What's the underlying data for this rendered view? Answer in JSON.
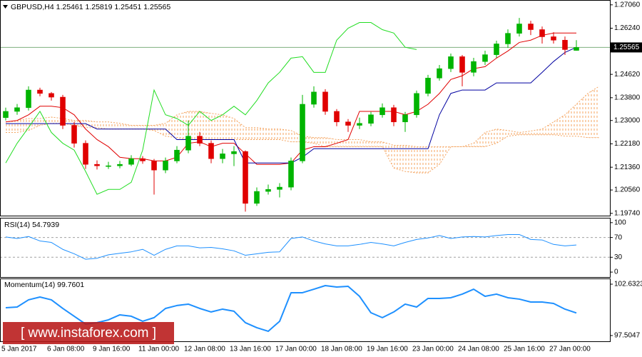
{
  "chart_data": [
    {
      "type": "candlestick",
      "title": "GBPUSD,H4  1.25461 1.25819 1.25451 1.25565",
      "categories": [
        "5 Jan 2017",
        null,
        null,
        null,
        "6 Jan 08:00",
        null,
        null,
        null,
        "9 Jan 16:00",
        null,
        null,
        null,
        "11 Jan 00:00",
        null,
        null,
        null,
        "12 Jan 08:00",
        null,
        null,
        null,
        "13 Jan 16:00",
        null,
        null,
        null,
        "17 Jan 00:00",
        null,
        null,
        null,
        "18 Jan 08:00",
        null,
        null,
        null,
        "19 Jan 16:00",
        null,
        null,
        null,
        "23 Jan 00:00",
        null,
        null,
        null,
        "24 Jan 08:00",
        null,
        null,
        null,
        "25 Jan 16:00",
        null,
        null,
        null,
        "27 Jan 00:00",
        null,
        null,
        null,
        null
      ],
      "ohlc": [
        [
          1.231,
          1.2345,
          1.23,
          1.2332
        ],
        [
          1.2332,
          1.2358,
          1.232,
          1.2345
        ],
        [
          1.2345,
          1.242,
          1.2335,
          1.2407
        ],
        [
          1.2407,
          1.2415,
          1.2385,
          1.2395
        ],
        [
          1.2395,
          1.24,
          1.237,
          1.2382
        ],
        [
          1.2382,
          1.239,
          1.227,
          1.2283
        ],
        [
          1.2283,
          1.2295,
          1.2205,
          1.222
        ],
        [
          1.222,
          1.223,
          1.213,
          1.2146
        ],
        [
          1.2146,
          1.216,
          1.2128,
          1.2141
        ],
        [
          1.2141,
          1.2155,
          1.213,
          1.2141
        ],
        [
          1.2141,
          1.2158,
          1.2132,
          1.2146
        ],
        [
          1.2146,
          1.2178,
          1.214,
          1.2166
        ],
        [
          1.2166,
          1.2175,
          1.2148,
          1.2158
        ],
        [
          1.2158,
          1.2165,
          1.204,
          1.2126
        ],
        [
          1.2126,
          1.217,
          1.2115,
          1.2158
        ],
        [
          1.2158,
          1.221,
          1.215,
          1.2196
        ],
        [
          1.2196,
          1.23,
          1.2185,
          1.2245
        ],
        [
          1.2245,
          1.226,
          1.221,
          1.222
        ],
        [
          1.222,
          1.223,
          1.215,
          1.2166
        ],
        [
          1.2166,
          1.22,
          1.215,
          1.2183
        ],
        [
          1.2183,
          1.221,
          1.214,
          1.2191
        ],
        [
          1.2191,
          1.2195,
          1.198,
          1.2009
        ],
        [
          1.2009,
          1.2065,
          1.2,
          1.2051
        ],
        [
          1.2051,
          1.2075,
          1.204,
          1.2058
        ],
        [
          1.2058,
          1.208,
          1.203,
          1.2066
        ],
        [
          1.2066,
          1.217,
          1.2055,
          1.2158
        ],
        [
          1.2158,
          1.239,
          1.215,
          1.2357
        ],
        [
          1.2357,
          1.242,
          1.2345,
          1.24
        ],
        [
          1.24,
          1.241,
          1.232,
          1.2332
        ],
        [
          1.2332,
          1.234,
          1.228,
          1.2295
        ],
        [
          1.2295,
          1.2305,
          1.226,
          1.2283
        ],
        [
          1.2283,
          1.231,
          1.227,
          1.229
        ],
        [
          1.229,
          1.233,
          1.228,
          1.232
        ],
        [
          1.232,
          1.236,
          1.231,
          1.2345
        ],
        [
          1.2345,
          1.2355,
          1.228,
          1.2295
        ],
        [
          1.2295,
          1.233,
          1.226,
          1.232
        ],
        [
          1.232,
          1.2405,
          1.231,
          1.2395
        ],
        [
          1.2395,
          1.246,
          1.2385,
          1.2449
        ],
        [
          1.2449,
          1.2495,
          1.244,
          1.2482
        ],
        [
          1.2482,
          1.2535,
          1.247,
          1.2524
        ],
        [
          1.2524,
          1.253,
          1.242,
          1.2469
        ],
        [
          1.2469,
          1.252,
          1.2455,
          1.2507
        ],
        [
          1.2507,
          1.2545,
          1.2495,
          1.2531
        ],
        [
          1.2531,
          1.258,
          1.252,
          1.2569
        ],
        [
          1.2569,
          1.262,
          1.2555,
          1.2606
        ],
        [
          1.2606,
          1.266,
          1.2595,
          1.2639
        ],
        [
          1.2639,
          1.265,
          1.26,
          1.2619
        ],
        [
          1.2619,
          1.263,
          1.257,
          1.2594
        ],
        [
          1.2594,
          1.261,
          1.257,
          1.2582
        ],
        [
          1.2582,
          1.2595,
          1.253,
          1.2549
        ],
        [
          1.25461,
          1.25819,
          1.25451,
          1.25565
        ],
        null,
        null
      ],
      "up_color": "#00b400",
      "down_color": "#e00000",
      "series": [
        {
          "color": "#e00000",
          "values": [
            1.2295,
            1.23,
            1.232,
            1.235,
            1.235,
            1.2345,
            1.232,
            1.227,
            1.2233,
            1.2208,
            1.2171,
            1.2166,
            1.2166,
            1.2158,
            1.2158,
            1.2171,
            1.222,
            1.2225,
            1.2208,
            1.222,
            1.222,
            1.2183,
            1.2146,
            1.2146,
            1.2146,
            1.2151,
            1.2196,
            1.2208,
            1.2208,
            1.222,
            1.2233,
            1.2332,
            1.2332,
            1.2332,
            1.2332,
            1.232,
            1.2332,
            1.2357,
            1.2395,
            1.2444,
            1.2457,
            1.2482,
            1.2489,
            1.2519,
            1.2544,
            1.2574,
            1.2582,
            1.2599,
            1.2607,
            1.2607,
            1.2607,
            null,
            null
          ]
        },
        {
          "color": "#0000a0",
          "values": [
            1.2289,
            1.2289,
            1.2289,
            1.2289,
            1.2289,
            1.2289,
            1.2289,
            1.2289,
            1.227,
            1.227,
            1.227,
            1.227,
            1.227,
            1.227,
            1.227,
            1.2233,
            1.2233,
            1.2233,
            1.2233,
            1.2233,
            1.2233,
            1.2151,
            1.2151,
            1.2151,
            1.2151,
            1.2151,
            1.2171,
            1.2201,
            1.2201,
            1.2201,
            1.2201,
            1.2201,
            1.2201,
            1.2201,
            1.2201,
            1.2201,
            1.2201,
            1.2201,
            1.232,
            1.2395,
            1.2407,
            1.2407,
            1.2407,
            1.2432,
            1.2432,
            1.2432,
            1.2432,
            1.2469,
            1.2507,
            1.2539,
            1.2557,
            null,
            null
          ]
        },
        {
          "color": "#22dd22",
          "values": [
            1.2151,
            1.222,
            1.2275,
            1.2332,
            1.2258,
            1.222,
            1.2196,
            1.2121,
            1.2041,
            1.2058,
            1.2058,
            1.2083,
            1.2196,
            1.2407,
            1.232,
            1.2307,
            1.2283,
            1.2332,
            1.23,
            1.232,
            1.235,
            1.232,
            1.237,
            1.2432,
            1.2469,
            1.2519,
            1.2524,
            1.2469,
            1.2469,
            1.2582,
            1.2624,
            1.2644,
            1.2644,
            1.2619,
            1.2607,
            1.2557,
            1.2549,
            null,
            null,
            null,
            null,
            null,
            null,
            null,
            null,
            null,
            null,
            null,
            null,
            null,
            null,
            null,
            null
          ]
        }
      ],
      "cloud": {
        "color": "#f4a460",
        "span_a": [
          1.2295,
          1.23,
          1.2307,
          1.2307,
          1.2312,
          1.2307,
          1.23,
          1.23,
          1.2295,
          1.2295,
          1.229,
          1.2283,
          1.2283,
          1.2283,
          1.229,
          1.232,
          1.2332,
          1.2332,
          1.2325,
          1.232,
          1.2307,
          1.2275,
          1.2275,
          1.227,
          1.227,
          1.2265,
          1.2245,
          1.224,
          1.224,
          1.2233,
          1.2233,
          1.2233,
          1.2225,
          1.2225,
          1.2213,
          1.2213,
          1.2208,
          1.2208,
          1.2208,
          1.2208,
          1.2208,
          1.222,
          1.2258,
          1.227,
          1.2265,
          1.2258,
          1.2263,
          1.227,
          1.2295,
          1.232,
          1.2357,
          1.2395,
          1.242
        ],
        "span_b": [
          1.2258,
          1.2258,
          1.2265,
          1.2283,
          1.229,
          1.229,
          1.2283,
          1.2275,
          1.2275,
          1.227,
          1.227,
          1.227,
          1.227,
          1.2265,
          1.2245,
          1.224,
          1.2233,
          1.2233,
          1.2233,
          1.2233,
          1.2233,
          1.2233,
          1.2233,
          1.2233,
          1.2233,
          1.2225,
          1.2225,
          1.222,
          1.2208,
          1.2208,
          1.2208,
          1.2208,
          1.2208,
          1.2208,
          1.2133,
          1.2121,
          1.2116,
          1.2116,
          1.2146,
          1.2208,
          1.2208,
          1.2208,
          1.2208,
          1.222,
          1.2245,
          1.225,
          1.225,
          1.225,
          1.225,
          1.2245,
          1.2245,
          1.224,
          1.224
        ]
      },
      "last_price": 1.25565,
      "last_price_color": "#7fb07f",
      "ylim": [
        1.1966,
        1.2718
      ],
      "yticks": [
        {
          "value": 1.2706,
          "label": "1.27060"
        },
        {
          "value": 1.2624,
          "label": "1.26240"
        },
        {
          "value": 1.2462,
          "label": "1.24620"
        },
        {
          "value": 1.238,
          "label": "1.23800"
        },
        {
          "value": 1.23,
          "label": "1.23000"
        },
        {
          "value": 1.2218,
          "label": "1.22180"
        },
        {
          "value": 1.2136,
          "label": "1.21360"
        },
        {
          "value": 1.2056,
          "label": "1.20560"
        },
        {
          "value": 1.1974,
          "label": "1.19740"
        }
      ]
    },
    {
      "type": "line",
      "title": "RSI(14) 54.7939",
      "color": "#1e90ff",
      "values": [
        71,
        68,
        72,
        63,
        60,
        46,
        37,
        26,
        28,
        35,
        38,
        41,
        46,
        34,
        46,
        53,
        53,
        49,
        50,
        47,
        43,
        34,
        37,
        40,
        41,
        68,
        71,
        63,
        57,
        53,
        53,
        56,
        60,
        57,
        53,
        60,
        66,
        69,
        74,
        68,
        71,
        72,
        71,
        74,
        76,
        76,
        66,
        65,
        56,
        53,
        54.7939,
        null,
        null
      ],
      "levels": [
        70,
        30
      ],
      "level_color": "#a0a0a0",
      "ylim": [
        -10,
        107
      ],
      "yticks": [
        0,
        30,
        70,
        100
      ]
    },
    {
      "type": "line",
      "title": "Momentum(14) 99.7601",
      "color": "#1e90ff",
      "values": [
        100.28,
        100.35,
        101.07,
        101.35,
        101.07,
        100.21,
        99.43,
        98.65,
        98.79,
        99.07,
        99.57,
        99.43,
        98.93,
        99.29,
        100.21,
        100.5,
        100.64,
        100.21,
        99.86,
        100.14,
        99.93,
        98.79,
        98.29,
        97.93,
        98.93,
        101.78,
        101.78,
        102.13,
        102.49,
        102.35,
        102.42,
        101.42,
        99.78,
        99.29,
        99.86,
        100.64,
        100.35,
        101.21,
        101.21,
        101.28,
        101.64,
        102.13,
        101.42,
        101.64,
        101.28,
        101.14,
        100.85,
        100.85,
        100.71,
        100.14,
        99.7601,
        null,
        null
      ],
      "ylim": [
        96.93,
        103.06
      ],
      "yticks": [
        97.5047,
        102.6323
      ]
    }
  ],
  "watermark": "[ www.instaforex.com ]"
}
